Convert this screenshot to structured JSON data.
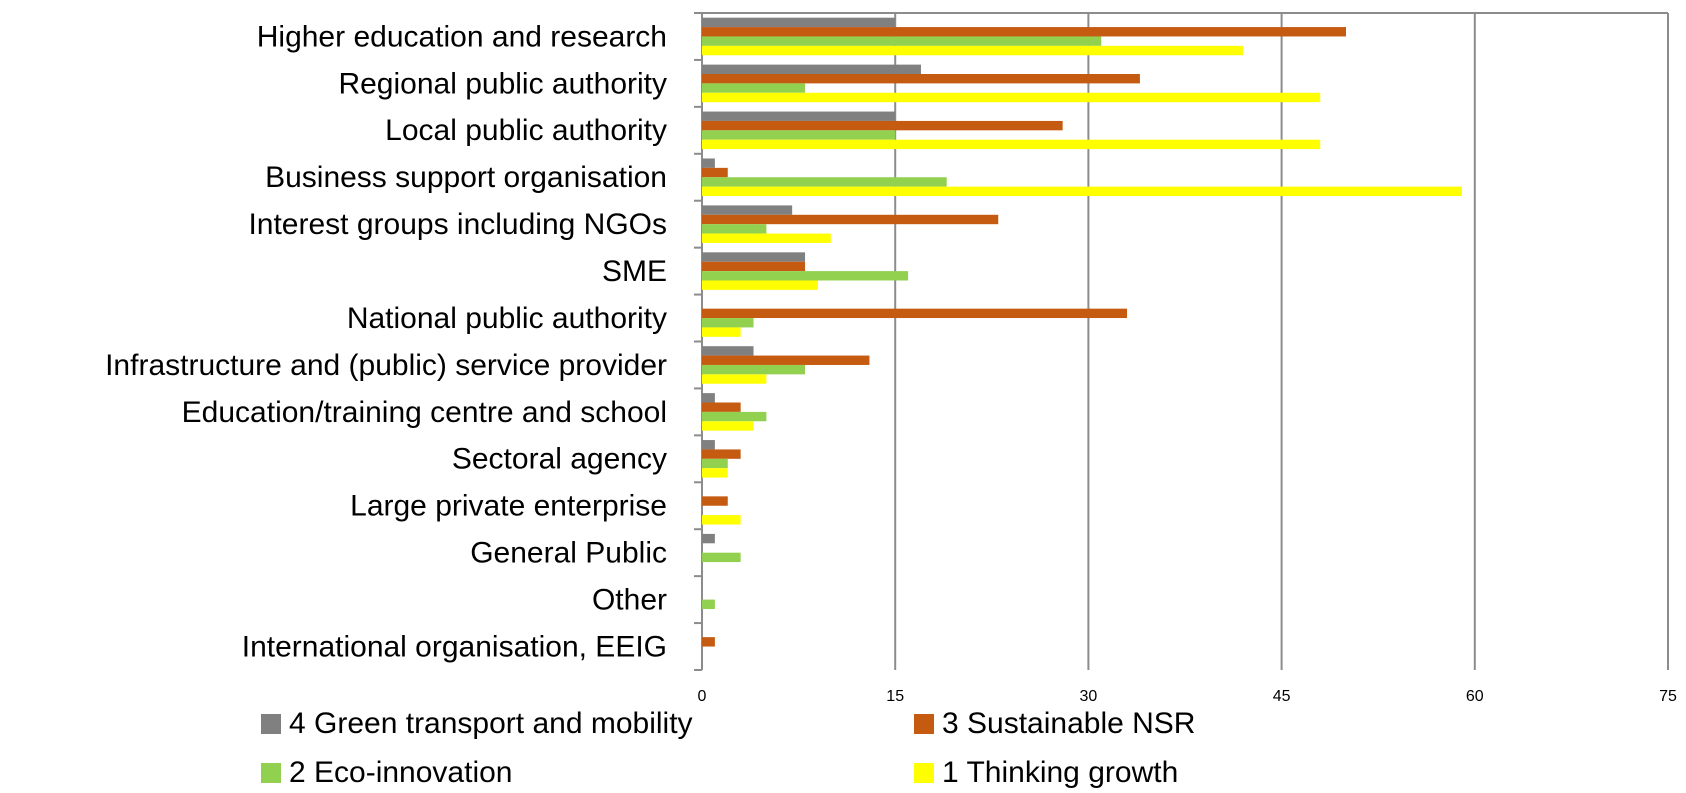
{
  "chart_data": {
    "type": "barh",
    "categories": [
      "Higher education and research",
      "Regional public authority",
      "Local public authority",
      "Business support organisation",
      "Interest groups including NGOs",
      "SME",
      "National public authority",
      "Infrastructure and (public) service provider",
      "Education/training centre and school",
      "Sectoral agency",
      "Large private enterprise",
      "General Public",
      "Other",
      "International organisation, EEIG"
    ],
    "series": [
      {
        "name": "4 Green transport and mobility",
        "color": "#808080",
        "values": [
          15,
          17,
          15,
          1,
          7,
          8,
          0,
          4,
          1,
          1,
          0,
          1,
          0,
          0
        ]
      },
      {
        "name": "3 Sustainable NSR",
        "color": "#c55a11",
        "values": [
          50,
          34,
          28,
          2,
          23,
          8,
          33,
          13,
          3,
          3,
          2,
          0,
          0,
          1
        ]
      },
      {
        "name": "2 Eco-innovation",
        "color": "#92d050",
        "values": [
          31,
          8,
          15,
          19,
          5,
          16,
          4,
          8,
          5,
          2,
          0,
          3,
          1,
          0
        ]
      },
      {
        "name": "1 Thinking growth",
        "color": "#ffff00",
        "values": [
          42,
          48,
          48,
          59,
          10,
          9,
          3,
          5,
          4,
          2,
          3,
          0,
          0,
          0
        ]
      }
    ],
    "xlim": [
      0,
      75
    ],
    "xticks": [
      0,
      15,
      30,
      45,
      60,
      75
    ],
    "grid": true
  }
}
